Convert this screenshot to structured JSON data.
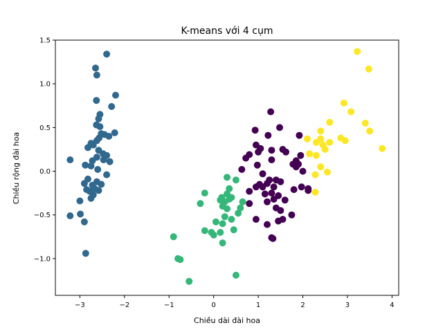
{
  "chart_data": {
    "type": "scatter",
    "title": "K-means với 4 cụm",
    "xlabel": "Chiều dài đài hoa",
    "ylabel": "Chiều rộng đài hoa",
    "xlim": [
      -3.55,
      4.15
    ],
    "ylim": [
      -1.42,
      1.5
    ],
    "xticks": [
      -3,
      -2,
      -1,
      0,
      1,
      2,
      3,
      4
    ],
    "yticks": [
      -1.0,
      -0.5,
      0.0,
      0.5,
      1.0,
      1.5
    ],
    "ytick_labels": [
      "−1.0",
      "−0.5",
      "0.0",
      "0.5",
      "1.0",
      "1.5"
    ],
    "xtick_labels": [
      "−3",
      "−2",
      "−1",
      "0",
      "1",
      "2",
      "3",
      "4"
    ],
    "grid": false,
    "series": [
      {
        "color": "#31688e",
        "points": [
          [
            -2.4,
            1.34
          ],
          [
            -2.65,
            1.18
          ],
          [
            -2.62,
            1.1
          ],
          [
            -2.2,
            0.87
          ],
          [
            -2.63,
            0.81
          ],
          [
            -2.55,
            0.65
          ],
          [
            -2.29,
            0.74
          ],
          [
            -2.58,
            0.6
          ],
          [
            -2.63,
            0.53
          ],
          [
            -2.55,
            0.51
          ],
          [
            -2.22,
            0.44
          ],
          [
            -2.45,
            0.42
          ],
          [
            -2.52,
            0.43
          ],
          [
            -2.35,
            0.4
          ],
          [
            -2.57,
            0.38
          ],
          [
            -2.62,
            0.35
          ],
          [
            -2.75,
            0.32
          ],
          [
            -2.7,
            0.3
          ],
          [
            -2.82,
            0.27
          ],
          [
            -2.58,
            0.24
          ],
          [
            -2.48,
            0.2
          ],
          [
            -2.4,
            0.18
          ],
          [
            -2.62,
            0.16
          ],
          [
            -2.72,
            0.12
          ],
          [
            -2.47,
            0.13
          ],
          [
            -2.33,
            0.11
          ],
          [
            -3.22,
            0.13
          ],
          [
            -2.88,
            0.07
          ],
          [
            -2.75,
            0.06
          ],
          [
            -2.6,
            0.02
          ],
          [
            -2.4,
            -0.04
          ],
          [
            -2.82,
            -0.09
          ],
          [
            -2.62,
            -0.12
          ],
          [
            -2.52,
            -0.15
          ],
          [
            -2.9,
            -0.14
          ],
          [
            -2.72,
            -0.16
          ],
          [
            -2.85,
            -0.21
          ],
          [
            -2.67,
            -0.2
          ],
          [
            -2.78,
            -0.23
          ],
          [
            -2.58,
            -0.22
          ],
          [
            -2.7,
            -0.27
          ],
          [
            -2.75,
            -0.31
          ],
          [
            -3.0,
            -0.34
          ],
          [
            -3.22,
            -0.51
          ],
          [
            -2.99,
            -0.49
          ],
          [
            -2.9,
            -0.58
          ],
          [
            -2.87,
            -0.94
          ]
        ]
      },
      {
        "color": "#35b779",
        "points": [
          [
            -0.2,
            -0.25
          ],
          [
            0.3,
            -0.07
          ],
          [
            0.5,
            -0.1
          ],
          [
            0.35,
            -0.2
          ],
          [
            0.3,
            -0.26
          ],
          [
            0.18,
            -0.3
          ],
          [
            0.35,
            -0.32
          ],
          [
            0.25,
            -0.35
          ],
          [
            0.4,
            -0.3
          ],
          [
            0.15,
            -0.33
          ],
          [
            0.2,
            -0.4
          ],
          [
            0.3,
            -0.43
          ],
          [
            0.65,
            -0.35
          ],
          [
            0.6,
            -0.42
          ],
          [
            -0.3,
            -0.37
          ],
          [
            0.55,
            -0.48
          ],
          [
            0.25,
            -0.52
          ],
          [
            0.4,
            -0.55
          ],
          [
            0.05,
            -0.58
          ],
          [
            0.2,
            -0.6
          ],
          [
            -0.2,
            -0.68
          ],
          [
            0.45,
            -0.67
          ],
          [
            -0.05,
            -0.7
          ],
          [
            0.0,
            -0.73
          ],
          [
            0.15,
            -0.7
          ],
          [
            -0.9,
            -0.75
          ],
          [
            0.2,
            -0.82
          ],
          [
            -0.8,
            -1.0
          ],
          [
            -0.75,
            -1.01
          ],
          [
            0.5,
            -1.19
          ],
          [
            -0.55,
            -1.26
          ]
        ]
      },
      {
        "color": "#440154",
        "points": [
          [
            1.28,
            0.68
          ],
          [
            1.48,
            0.5
          ],
          [
            0.93,
            0.47
          ],
          [
            1.22,
            0.41
          ],
          [
            1.92,
            0.41
          ],
          [
            0.95,
            0.3
          ],
          [
            1.05,
            0.26
          ],
          [
            1.55,
            0.25
          ],
          [
            1.62,
            0.22
          ],
          [
            1.3,
            0.24
          ],
          [
            1.0,
            0.22
          ],
          [
            0.72,
            0.15
          ],
          [
            0.8,
            0.19
          ],
          [
            1.85,
            0.12
          ],
          [
            1.9,
            0.08
          ],
          [
            1.95,
            0.18
          ],
          [
            2.0,
            0.0
          ],
          [
            1.3,
            0.13
          ],
          [
            1.85,
            0.05
          ],
          [
            0.63,
            0.02
          ],
          [
            1.78,
            0.08
          ],
          [
            0.98,
            0.07
          ],
          [
            1.1,
            -0.03
          ],
          [
            1.4,
            -0.1
          ],
          [
            1.25,
            -0.1
          ],
          [
            1.5,
            -0.12
          ],
          [
            1.03,
            -0.15
          ],
          [
            1.2,
            -0.14
          ],
          [
            0.95,
            -0.18
          ],
          [
            1.1,
            -0.18
          ],
          [
            1.35,
            -0.18
          ],
          [
            1.8,
            -0.21
          ],
          [
            1.97,
            -0.18
          ],
          [
            2.12,
            -0.2
          ],
          [
            0.8,
            -0.23
          ],
          [
            1.3,
            -0.25
          ],
          [
            1.15,
            -0.26
          ],
          [
            1.45,
            -0.28
          ],
          [
            1.35,
            -0.32
          ],
          [
            1.6,
            -0.33
          ],
          [
            0.8,
            -0.37
          ],
          [
            1.2,
            -0.35
          ],
          [
            1.4,
            -0.42
          ],
          [
            1.75,
            -0.5
          ],
          [
            1.5,
            -0.45
          ],
          [
            0.95,
            -0.55
          ],
          [
            1.45,
            -0.57
          ],
          [
            1.55,
            -0.55
          ],
          [
            1.2,
            -0.61
          ],
          [
            1.3,
            -0.76
          ],
          [
            1.33,
            -0.77
          ],
          [
            2.12,
            -0.22
          ]
        ]
      },
      {
        "color": "#fde725",
        "points": [
          [
            3.22,
            1.37
          ],
          [
            3.48,
            1.17
          ],
          [
            2.92,
            0.78
          ],
          [
            3.08,
            0.68
          ],
          [
            2.6,
            0.56
          ],
          [
            3.4,
            0.55
          ],
          [
            2.4,
            0.46
          ],
          [
            3.5,
            0.46
          ],
          [
            2.85,
            0.38
          ],
          [
            2.95,
            0.35
          ],
          [
            2.1,
            0.37
          ],
          [
            2.4,
            0.37
          ],
          [
            2.3,
            0.33
          ],
          [
            2.45,
            0.3
          ],
          [
            2.6,
            0.33
          ],
          [
            3.78,
            0.26
          ],
          [
            2.5,
            0.25
          ],
          [
            2.15,
            0.2
          ],
          [
            2.3,
            0.18
          ],
          [
            2.4,
            0.05
          ],
          [
            2.28,
            -0.04
          ],
          [
            2.55,
            -0.01
          ],
          [
            2.28,
            -0.24
          ]
        ]
      }
    ]
  }
}
